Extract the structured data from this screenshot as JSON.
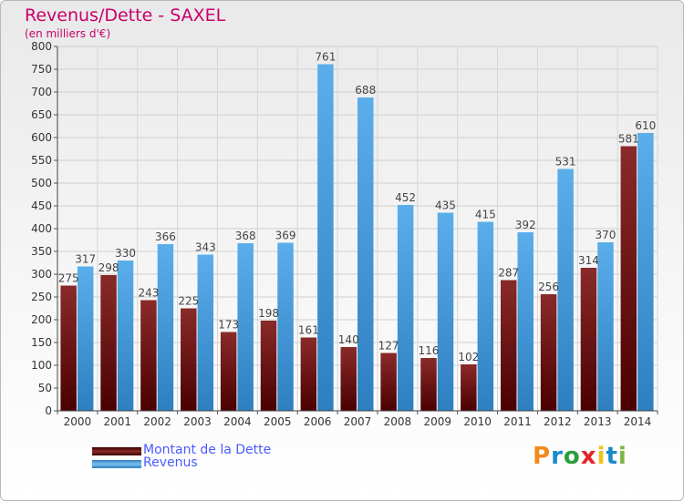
{
  "header": {
    "title": "Revenus/Dette - SAXEL",
    "subtitle": "(en milliers d'€)"
  },
  "legend": {
    "items": [
      {
        "label": "Montant de la Dette",
        "color": "#7a1a1a"
      },
      {
        "label": "Revenus",
        "color": "#4fa6e6"
      }
    ]
  },
  "logo": {
    "text": "Proxiti",
    "colors": [
      "#f28a1b",
      "#1a8ac9",
      "#2a9d3a",
      "#e3242b",
      "#f2c21b",
      "#1a8ac9",
      "#7ab648"
    ]
  },
  "chart_data": {
    "type": "bar",
    "categories": [
      "2000",
      "2001",
      "2002",
      "2003",
      "2004",
      "2005",
      "2006",
      "2007",
      "2008",
      "2009",
      "2010",
      "2011",
      "2012",
      "2013",
      "2014"
    ],
    "series": [
      {
        "name": "Montant de la Dette",
        "color": "#7a1a1a",
        "values": [
          275,
          298,
          243,
          225,
          173,
          198,
          161,
          140,
          127,
          116,
          102,
          287,
          256,
          314,
          581
        ]
      },
      {
        "name": "Revenus",
        "color": "#4fa6e6",
        "values": [
          317,
          330,
          366,
          343,
          368,
          369,
          761,
          688,
          452,
          435,
          415,
          392,
          531,
          370,
          610
        ]
      }
    ],
    "ylim": [
      0,
      800
    ],
    "yticks": [
      0,
      50,
      100,
      150,
      200,
      250,
      300,
      350,
      400,
      450,
      500,
      550,
      600,
      650,
      700,
      750,
      800
    ],
    "grid": true,
    "legend_position": "bottom-left"
  }
}
